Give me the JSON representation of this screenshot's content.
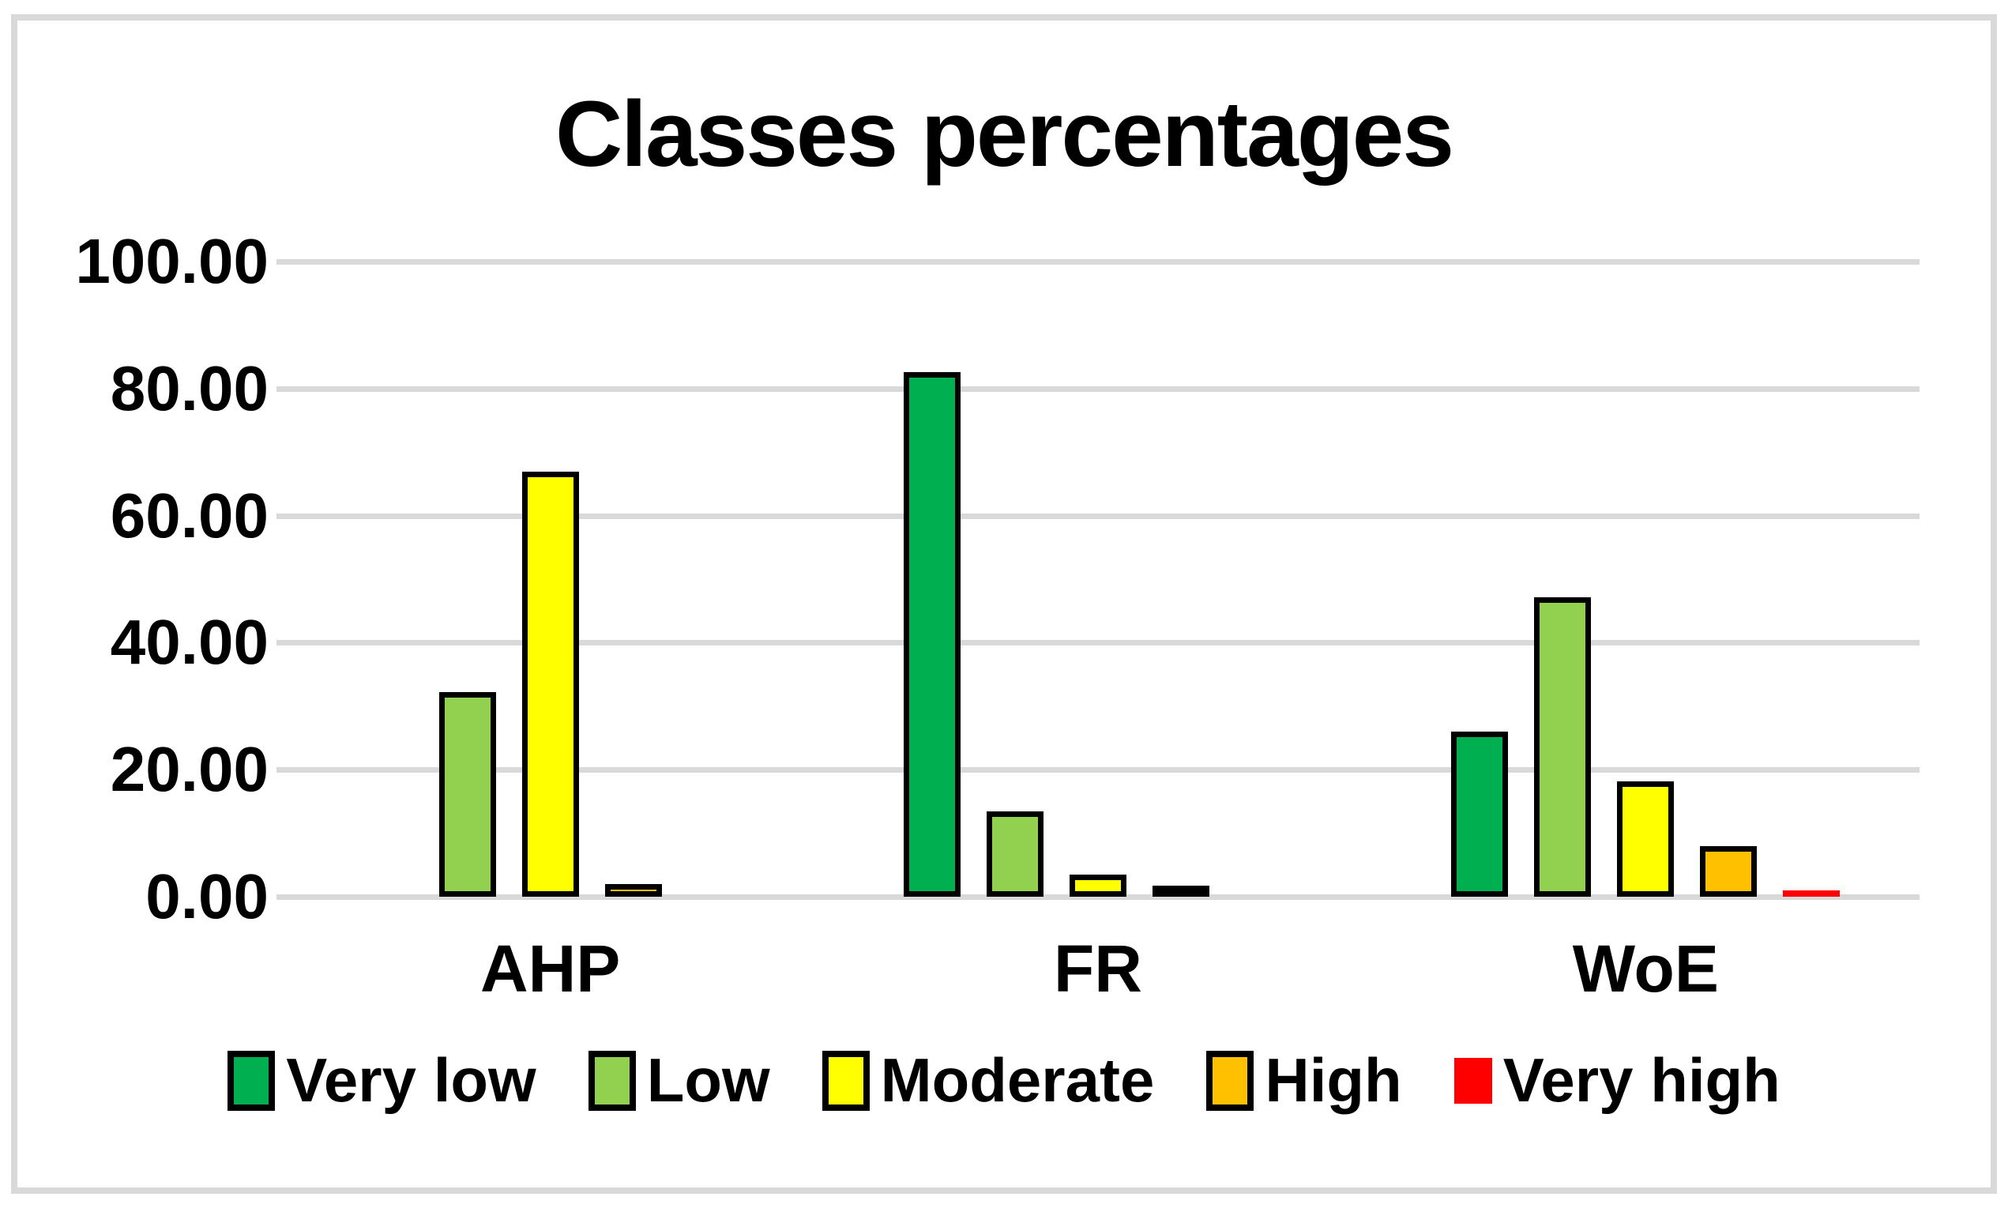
{
  "title": "Classes percentages",
  "y_axis": {
    "labels": [
      "100.00",
      "80.00",
      "60.00",
      "40.00",
      "20.00",
      "0.00"
    ],
    "values": [
      100,
      80,
      60,
      40,
      20,
      0
    ]
  },
  "categories": [
    "AHP",
    "FR",
    "WoE"
  ],
  "legend": [
    {
      "label": "Very low",
      "color": "#00B050",
      "border": true
    },
    {
      "label": "Low",
      "color": "#92D050",
      "border": true
    },
    {
      "label": "Moderate",
      "color": "#FFFF00",
      "border": true
    },
    {
      "label": "High",
      "color": "#FFC000",
      "border": true
    },
    {
      "label": "Very high",
      "color": "#FF0000",
      "border": false
    }
  ],
  "chart_data": {
    "type": "bar",
    "title": "Classes percentages",
    "categories": [
      "AHP",
      "FR",
      "WoE"
    ],
    "series": [
      {
        "name": "Very low",
        "color": "#00B050",
        "border": true,
        "values": [
          0.0,
          82.6,
          26.0
        ]
      },
      {
        "name": "Low",
        "color": "#92D050",
        "border": true,
        "values": [
          32.2,
          13.4,
          47.2
        ]
      },
      {
        "name": "Moderate",
        "color": "#FFFF00",
        "border": true,
        "values": [
          66.9,
          3.5,
          18.2
        ]
      },
      {
        "name": "High",
        "color": "#FFC000",
        "border": true,
        "values": [
          2.0,
          0.6,
          8.0
        ]
      },
      {
        "name": "Very high",
        "color": "#FF0000",
        "border": false,
        "values": [
          0.0,
          0.0,
          1.0
        ]
      }
    ],
    "ylim": [
      0,
      100
    ],
    "ytick_interval": 20,
    "grid": "horizontal",
    "gridline_color": "#D9D9D9",
    "bar_border_color": "#000000",
    "legend_position": "bottom",
    "xlabel": "",
    "ylabel": ""
  },
  "colors": {
    "frame_border": "#D9D9D9",
    "background": "#FFFFFF",
    "text": "#000000"
  }
}
